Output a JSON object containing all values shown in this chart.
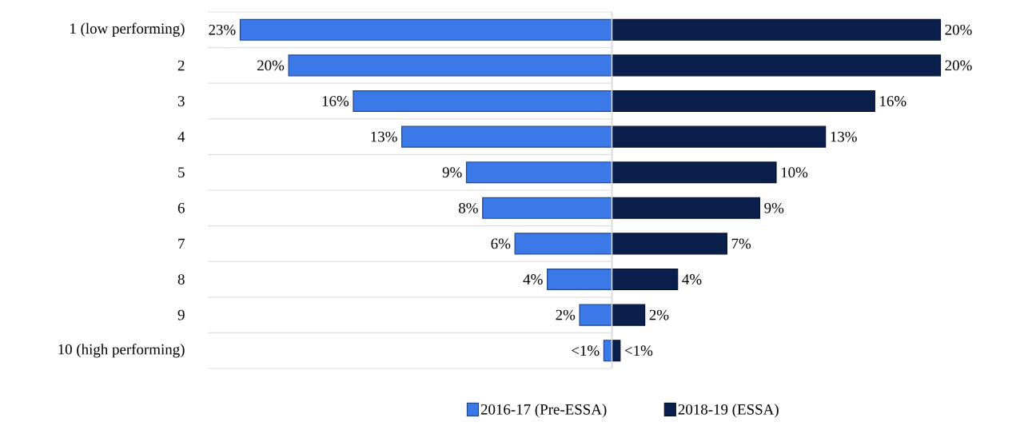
{
  "chart_data": [
    {
      "type": "bar",
      "orientation": "horizontal",
      "categories": [
        "1 (low performing)",
        "2",
        "3",
        "4",
        "5",
        "6",
        "7",
        "8",
        "9",
        "10 (high performing)"
      ],
      "series": [
        {
          "name": "2016-17 (Pre-ESSA)",
          "color": "#3b78e8",
          "values": [
            23,
            20,
            16,
            13,
            9,
            8,
            6,
            4,
            2,
            0.5
          ],
          "value_labels": [
            "23%",
            "20%",
            "16%",
            "13%",
            "9%",
            "8%",
            "6%",
            "4%",
            "2%",
            "<1%"
          ]
        }
      ],
      "xlim": [
        25,
        0
      ],
      "tick_labels": "y",
      "grid": "y",
      "legend": "bottom"
    },
    {
      "type": "bar",
      "orientation": "horizontal",
      "categories": [
        null,
        null,
        null,
        null,
        null,
        null,
        null,
        null,
        null,
        null
      ],
      "series": [
        {
          "name": "2018-19 (ESSA)",
          "color": "#0a1f4b",
          "values": [
            20,
            20,
            16,
            13,
            10,
            9,
            7,
            4,
            2,
            0.5
          ],
          "value_labels": [
            "20%",
            "20%",
            "16%",
            "13%",
            "10%",
            "9%",
            "7%",
            "4%",
            "2%",
            "<1%"
          ]
        }
      ],
      "tick_labels": false,
      "grid": "y",
      "legend": "bottom"
    }
  ]
}
